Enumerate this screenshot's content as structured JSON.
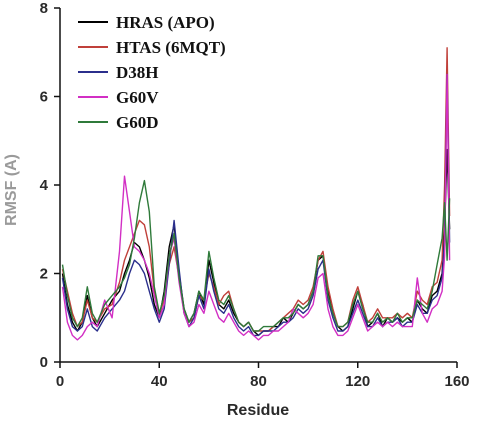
{
  "chart_data": {
    "type": "line",
    "title": "",
    "xlabel": "Residue",
    "ylabel": "RMSF (A)",
    "xlim": [
      0,
      160
    ],
    "ylim": [
      0,
      8
    ],
    "xticks": [
      "0",
      "40",
      "80",
      "120",
      "160"
    ],
    "yticks": [
      "0",
      "2",
      "4",
      "6",
      "8"
    ],
    "grid": false,
    "legend_position": "top-left",
    "series": [
      {
        "name": "HRAS (APO)",
        "color": "#000000",
        "x": [
          1,
          3,
          5,
          7,
          9,
          11,
          13,
          15,
          18,
          21,
          24,
          26,
          28,
          30,
          32,
          34,
          36,
          38,
          40,
          42,
          44,
          46,
          48,
          50,
          52,
          54,
          56,
          58,
          60,
          62,
          64,
          66,
          68,
          70,
          72,
          74,
          76,
          78,
          80,
          82,
          84,
          86,
          88,
          90,
          92,
          94,
          96,
          98,
          100,
          102,
          104,
          106,
          108,
          110,
          112,
          114,
          116,
          118,
          120,
          122,
          124,
          126,
          128,
          130,
          132,
          134,
          136,
          138,
          140,
          142,
          144,
          146,
          148,
          150,
          152,
          154,
          155,
          156,
          157
        ],
        "y": [
          2.0,
          1.3,
          0.9,
          0.7,
          0.9,
          1.5,
          1.0,
          0.8,
          1.1,
          1.4,
          1.6,
          2.0,
          2.3,
          2.7,
          2.6,
          2.3,
          1.9,
          1.3,
          1.0,
          1.6,
          2.6,
          3.1,
          2.0,
          1.2,
          0.9,
          1.1,
          1.6,
          1.3,
          2.3,
          1.8,
          1.3,
          1.2,
          1.4,
          1.1,
          0.9,
          0.8,
          0.9,
          0.7,
          0.6,
          0.7,
          0.7,
          0.8,
          0.8,
          1.0,
          0.9,
          1.1,
          1.3,
          1.2,
          1.3,
          1.6,
          2.3,
          2.4,
          1.6,
          1.1,
          0.8,
          0.7,
          0.8,
          1.2,
          1.6,
          1.3,
          0.8,
          0.9,
          1.1,
          0.8,
          1.0,
          0.9,
          1.0,
          0.9,
          1.0,
          0.9,
          1.4,
          1.2,
          1.1,
          1.5,
          1.6,
          2.0,
          3.0,
          4.8,
          3.0
        ]
      },
      {
        "name": "HTAS (6MQT)",
        "color": "#c0403a",
        "x": [
          1,
          3,
          5,
          7,
          9,
          11,
          13,
          15,
          18,
          21,
          24,
          26,
          28,
          30,
          32,
          34,
          36,
          38,
          40,
          42,
          44,
          46,
          48,
          50,
          52,
          54,
          56,
          58,
          60,
          62,
          64,
          66,
          68,
          70,
          72,
          74,
          76,
          78,
          80,
          82,
          84,
          86,
          88,
          90,
          92,
          94,
          96,
          98,
          100,
          102,
          104,
          106,
          108,
          110,
          112,
          114,
          116,
          118,
          120,
          122,
          124,
          126,
          128,
          130,
          132,
          134,
          136,
          138,
          140,
          142,
          144,
          146,
          148,
          150,
          152,
          154,
          155,
          156,
          157
        ],
        "y": [
          2.1,
          1.6,
          1.1,
          0.8,
          0.9,
          1.4,
          1.0,
          0.9,
          1.2,
          1.3,
          1.8,
          2.3,
          2.6,
          2.9,
          3.2,
          3.1,
          2.6,
          1.6,
          1.1,
          1.4,
          2.2,
          2.6,
          1.9,
          1.1,
          0.9,
          1.0,
          1.5,
          1.4,
          2.0,
          1.7,
          1.3,
          1.5,
          1.6,
          1.2,
          0.9,
          0.8,
          0.9,
          0.7,
          0.7,
          0.7,
          0.7,
          0.8,
          0.9,
          1.0,
          1.1,
          1.2,
          1.4,
          1.3,
          1.4,
          1.7,
          2.3,
          2.5,
          1.7,
          1.2,
          0.8,
          0.8,
          0.9,
          1.4,
          1.7,
          1.3,
          0.9,
          1.0,
          1.2,
          1.0,
          1.0,
          1.0,
          1.1,
          1.0,
          1.1,
          1.0,
          1.6,
          1.4,
          1.3,
          1.7,
          1.8,
          2.3,
          4.0,
          7.1,
          3.3
        ]
      },
      {
        "name": "D38H",
        "color": "#2b2f8c",
        "x": [
          1,
          3,
          5,
          7,
          9,
          11,
          13,
          15,
          18,
          21,
          24,
          26,
          28,
          30,
          32,
          34,
          36,
          38,
          40,
          42,
          44,
          46,
          48,
          50,
          52,
          54,
          56,
          58,
          60,
          62,
          64,
          66,
          68,
          70,
          72,
          74,
          76,
          78,
          80,
          82,
          84,
          86,
          88,
          90,
          92,
          94,
          96,
          98,
          100,
          102,
          104,
          106,
          108,
          110,
          112,
          114,
          116,
          118,
          120,
          122,
          124,
          126,
          128,
          130,
          132,
          134,
          136,
          138,
          140,
          142,
          144,
          146,
          148,
          150,
          152,
          154,
          155,
          156,
          157
        ],
        "y": [
          1.9,
          1.2,
          0.8,
          0.7,
          0.8,
          1.2,
          0.8,
          0.7,
          1.0,
          1.2,
          1.4,
          1.6,
          2.0,
          2.3,
          2.2,
          2.0,
          1.6,
          1.2,
          0.9,
          1.2,
          2.2,
          3.2,
          2.1,
          1.1,
          0.8,
          1.0,
          1.5,
          1.2,
          2.1,
          1.6,
          1.2,
          1.1,
          1.3,
          1.0,
          0.8,
          0.7,
          0.8,
          0.6,
          0.6,
          0.7,
          0.7,
          0.7,
          0.8,
          0.9,
          0.9,
          1.0,
          1.2,
          1.1,
          1.2,
          1.5,
          2.1,
          2.3,
          1.4,
          1.0,
          0.7,
          0.7,
          0.8,
          1.1,
          1.4,
          1.1,
          0.8,
          0.8,
          1.0,
          0.8,
          0.9,
          0.9,
          1.0,
          0.8,
          0.9,
          0.9,
          1.3,
          1.1,
          1.1,
          1.4,
          1.5,
          1.9,
          2.8,
          6.5,
          2.7
        ]
      },
      {
        "name": "G60V",
        "color": "#d22fc4",
        "x": [
          1,
          3,
          5,
          7,
          9,
          11,
          13,
          15,
          18,
          21,
          24,
          26,
          28,
          30,
          32,
          34,
          36,
          38,
          40,
          42,
          44,
          46,
          48,
          50,
          52,
          54,
          56,
          58,
          60,
          62,
          64,
          66,
          68,
          70,
          72,
          74,
          76,
          78,
          80,
          82,
          84,
          86,
          88,
          90,
          92,
          94,
          96,
          98,
          100,
          102,
          104,
          106,
          108,
          110,
          112,
          114,
          116,
          118,
          120,
          122,
          124,
          126,
          128,
          130,
          132,
          134,
          136,
          138,
          140,
          142,
          144,
          146,
          148,
          150,
          152,
          154,
          155,
          156,
          157
        ],
        "y": [
          1.7,
          0.9,
          0.6,
          0.5,
          0.6,
          0.8,
          0.9,
          0.8,
          1.4,
          1.0,
          2.5,
          4.2,
          3.4,
          2.6,
          2.5,
          2.3,
          2.0,
          1.5,
          1.0,
          1.3,
          2.4,
          2.8,
          1.8,
          1.1,
          0.8,
          0.9,
          1.3,
          1.1,
          1.6,
          1.3,
          1.0,
          0.9,
          1.1,
          0.9,
          0.7,
          0.6,
          0.7,
          0.6,
          0.5,
          0.6,
          0.6,
          0.7,
          0.7,
          0.8,
          0.9,
          1.2,
          1.1,
          1.0,
          1.1,
          1.3,
          1.9,
          2.0,
          1.2,
          0.8,
          0.6,
          0.6,
          0.7,
          1.0,
          1.3,
          1.0,
          0.7,
          0.8,
          0.9,
          0.8,
          0.9,
          0.8,
          0.9,
          0.8,
          0.8,
          0.8,
          1.9,
          1.1,
          0.9,
          1.2,
          1.3,
          1.6,
          2.4,
          6.5,
          2.3
        ]
      },
      {
        "name": "G60D",
        "color": "#2f7a3a",
        "x": [
          1,
          3,
          5,
          7,
          9,
          11,
          13,
          15,
          18,
          21,
          24,
          26,
          28,
          30,
          32,
          34,
          36,
          38,
          40,
          42,
          44,
          46,
          48,
          50,
          52,
          54,
          56,
          58,
          60,
          62,
          64,
          66,
          68,
          70,
          72,
          74,
          76,
          78,
          80,
          82,
          84,
          86,
          88,
          90,
          92,
          94,
          96,
          98,
          100,
          102,
          104,
          106,
          108,
          110,
          112,
          114,
          116,
          118,
          120,
          122,
          124,
          126,
          128,
          130,
          132,
          134,
          136,
          138,
          140,
          142,
          144,
          146,
          148,
          150,
          152,
          154,
          155,
          156,
          157
        ],
        "y": [
          2.2,
          1.5,
          1.0,
          0.8,
          1.0,
          1.7,
          1.1,
          0.9,
          1.3,
          1.5,
          1.7,
          1.9,
          2.2,
          2.8,
          3.6,
          4.1,
          3.4,
          1.7,
          1.1,
          1.5,
          2.4,
          2.9,
          1.9,
          1.2,
          0.9,
          1.1,
          1.6,
          1.4,
          2.5,
          1.9,
          1.4,
          1.3,
          1.5,
          1.2,
          0.9,
          0.8,
          0.9,
          0.7,
          0.7,
          0.8,
          0.8,
          0.8,
          0.9,
          1.0,
          1.0,
          1.1,
          1.3,
          1.2,
          1.3,
          1.6,
          2.4,
          2.4,
          1.5,
          1.1,
          0.8,
          0.8,
          0.9,
          1.3,
          1.6,
          1.2,
          0.9,
          0.9,
          1.1,
          0.9,
          1.0,
          0.9,
          1.1,
          0.9,
          1.0,
          1.0,
          1.4,
          1.3,
          1.2,
          1.6,
          2.2,
          2.8,
          3.6,
          2.3,
          3.7
        ]
      }
    ]
  }
}
